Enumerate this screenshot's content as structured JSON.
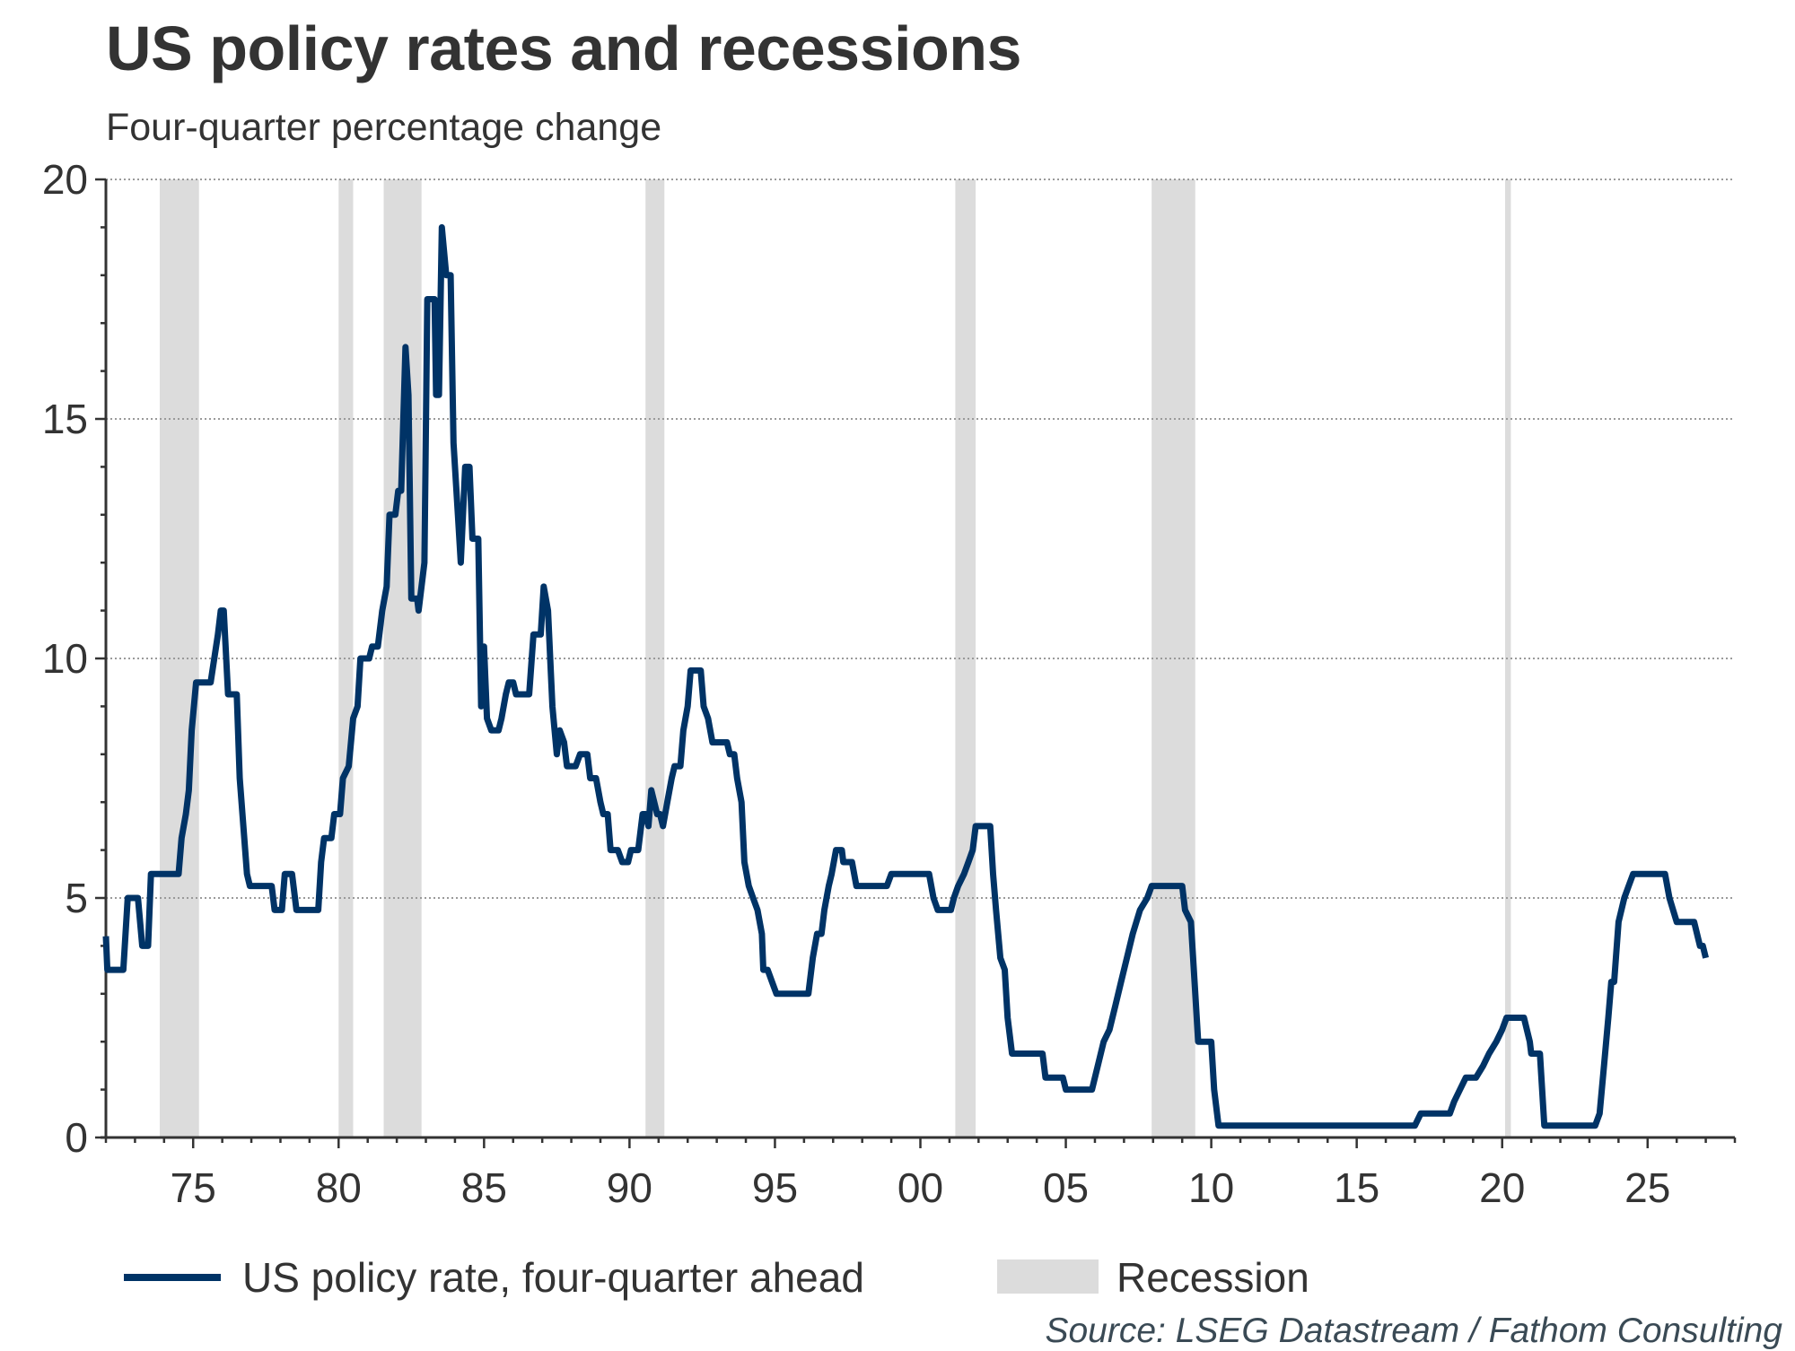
{
  "chart_data": {
    "type": "line",
    "title": "US policy rates and recessions",
    "subtitle": "Four-quarter percentage change",
    "xlabel": "",
    "ylabel": "",
    "xlim": [
      1972,
      2028
    ],
    "ylim": [
      0,
      20
    ],
    "x_ticks": [
      {
        "value": 1975,
        "label": "75"
      },
      {
        "value": 1980,
        "label": "80"
      },
      {
        "value": 1985,
        "label": "85"
      },
      {
        "value": 1990,
        "label": "90"
      },
      {
        "value": 1995,
        "label": "95"
      },
      {
        "value": 2000,
        "label": "00"
      },
      {
        "value": 2005,
        "label": "05"
      },
      {
        "value": 2010,
        "label": "10"
      },
      {
        "value": 2015,
        "label": "15"
      },
      {
        "value": 2020,
        "label": "20"
      },
      {
        "value": 2025,
        "label": "25"
      }
    ],
    "y_ticks": [
      {
        "value": 0,
        "label": "0"
      },
      {
        "value": 5,
        "label": "5"
      },
      {
        "value": 10,
        "label": "10"
      },
      {
        "value": 15,
        "label": "15"
      },
      {
        "value": 20,
        "label": "20"
      }
    ],
    "grid": "horizontal dotted",
    "legend_position": "bottom",
    "series": [
      {
        "name": "US policy rate, four-quarter ahead",
        "color": "#003366",
        "points": [
          [
            1972.0,
            4.2
          ],
          [
            1972.05,
            3.5
          ],
          [
            1972.6,
            3.5
          ],
          [
            1972.75,
            5.0
          ],
          [
            1973.1,
            5.0
          ],
          [
            1973.25,
            4.0
          ],
          [
            1973.45,
            4.0
          ],
          [
            1973.55,
            5.5
          ],
          [
            1974.5,
            5.5
          ],
          [
            1974.6,
            6.25
          ],
          [
            1974.75,
            6.75
          ],
          [
            1974.85,
            7.25
          ],
          [
            1974.95,
            8.5
          ],
          [
            1975.1,
            9.5
          ],
          [
            1975.6,
            9.5
          ],
          [
            1975.85,
            10.5
          ],
          [
            1975.95,
            11.0
          ],
          [
            1976.05,
            11.0
          ],
          [
            1976.2,
            9.25
          ],
          [
            1976.5,
            9.25
          ],
          [
            1976.6,
            7.5
          ],
          [
            1976.85,
            5.5
          ],
          [
            1976.95,
            5.25
          ],
          [
            1977.7,
            5.25
          ],
          [
            1977.8,
            4.75
          ],
          [
            1978.05,
            4.75
          ],
          [
            1978.15,
            5.5
          ],
          [
            1978.4,
            5.5
          ],
          [
            1978.55,
            4.75
          ],
          [
            1979.3,
            4.75
          ],
          [
            1979.4,
            5.75
          ],
          [
            1979.5,
            6.25
          ],
          [
            1979.75,
            6.25
          ],
          [
            1979.85,
            6.75
          ],
          [
            1980.05,
            6.75
          ],
          [
            1980.15,
            7.5
          ],
          [
            1980.35,
            7.75
          ],
          [
            1980.5,
            8.75
          ],
          [
            1980.65,
            9.0
          ],
          [
            1980.75,
            10.0
          ],
          [
            1981.05,
            10.0
          ],
          [
            1981.15,
            10.25
          ],
          [
            1981.35,
            10.25
          ],
          [
            1981.5,
            11.0
          ],
          [
            1981.65,
            11.5
          ],
          [
            1981.75,
            13.0
          ],
          [
            1981.95,
            13.0
          ],
          [
            1982.05,
            13.5
          ],
          [
            1982.15,
            13.5
          ],
          [
            1982.3,
            16.5
          ],
          [
            1982.4,
            15.5
          ],
          [
            1982.5,
            11.25
          ],
          [
            1982.7,
            11.25
          ],
          [
            1982.75,
            11.0
          ],
          [
            1982.95,
            12.0
          ],
          [
            1983.05,
            17.5
          ],
          [
            1983.3,
            17.5
          ],
          [
            1983.35,
            15.5
          ],
          [
            1983.45,
            15.5
          ],
          [
            1983.55,
            19.0
          ],
          [
            1983.7,
            18.0
          ],
          [
            1983.85,
            18.0
          ],
          [
            1983.95,
            14.5
          ],
          [
            1984.1,
            13.0
          ],
          [
            1984.2,
            12.0
          ],
          [
            1984.35,
            14.0
          ],
          [
            1984.5,
            14.0
          ],
          [
            1984.6,
            12.5
          ],
          [
            1984.8,
            12.5
          ],
          [
            1984.9,
            9.0
          ],
          [
            1985.0,
            10.25
          ],
          [
            1985.1,
            8.75
          ],
          [
            1985.25,
            8.5
          ],
          [
            1985.5,
            8.5
          ],
          [
            1985.6,
            8.75
          ],
          [
            1985.75,
            9.25
          ],
          [
            1985.85,
            9.5
          ],
          [
            1986.0,
            9.5
          ],
          [
            1986.1,
            9.25
          ],
          [
            1986.55,
            9.25
          ],
          [
            1986.7,
            10.5
          ],
          [
            1986.95,
            10.5
          ],
          [
            1987.05,
            11.5
          ],
          [
            1987.2,
            11.0
          ],
          [
            1987.35,
            9.0
          ],
          [
            1987.5,
            8.0
          ],
          [
            1987.6,
            8.5
          ],
          [
            1987.75,
            8.25
          ],
          [
            1987.85,
            7.75
          ],
          [
            1988.15,
            7.75
          ],
          [
            1988.3,
            8.0
          ],
          [
            1988.55,
            8.0
          ],
          [
            1988.65,
            7.5
          ],
          [
            1988.85,
            7.5
          ],
          [
            1989.0,
            7.0
          ],
          [
            1989.1,
            6.75
          ],
          [
            1989.25,
            6.75
          ],
          [
            1989.35,
            6.0
          ],
          [
            1989.6,
            6.0
          ],
          [
            1989.75,
            5.75
          ],
          [
            1989.95,
            5.75
          ],
          [
            1990.05,
            6.0
          ],
          [
            1990.3,
            6.0
          ],
          [
            1990.45,
            6.75
          ],
          [
            1990.55,
            6.75
          ],
          [
            1990.65,
            6.5
          ],
          [
            1990.75,
            7.25
          ],
          [
            1990.95,
            6.75
          ],
          [
            1991.05,
            6.75
          ],
          [
            1991.15,
            6.5
          ],
          [
            1991.3,
            7.0
          ],
          [
            1991.45,
            7.5
          ],
          [
            1991.55,
            7.75
          ],
          [
            1991.75,
            7.75
          ],
          [
            1991.85,
            8.5
          ],
          [
            1992.0,
            9.0
          ],
          [
            1992.1,
            9.75
          ],
          [
            1992.3,
            9.75
          ],
          [
            1992.45,
            9.75
          ],
          [
            1992.55,
            9.0
          ],
          [
            1992.7,
            8.75
          ],
          [
            1992.85,
            8.25
          ],
          [
            1993.35,
            8.25
          ],
          [
            1993.45,
            8.0
          ],
          [
            1993.6,
            8.0
          ],
          [
            1993.7,
            7.5
          ],
          [
            1993.85,
            7.0
          ],
          [
            1993.95,
            5.75
          ],
          [
            1994.1,
            5.25
          ],
          [
            1994.25,
            5.0
          ],
          [
            1994.4,
            4.75
          ],
          [
            1994.55,
            4.25
          ],
          [
            1994.6,
            3.5
          ],
          [
            1994.75,
            3.5
          ],
          [
            1994.9,
            3.25
          ],
          [
            1995.05,
            3.0
          ],
          [
            1995.15,
            3.0
          ],
          [
            1996.15,
            3.0
          ],
          [
            1996.3,
            3.75
          ],
          [
            1996.45,
            4.25
          ],
          [
            1996.6,
            4.25
          ],
          [
            1996.7,
            4.75
          ],
          [
            1996.85,
            5.25
          ],
          [
            1996.95,
            5.5
          ],
          [
            1997.1,
            6.0
          ],
          [
            1997.3,
            6.0
          ],
          [
            1997.35,
            5.75
          ],
          [
            1997.65,
            5.75
          ],
          [
            1997.8,
            5.25
          ],
          [
            1998.85,
            5.25
          ],
          [
            1999.0,
            5.5
          ],
          [
            2000.3,
            5.5
          ],
          [
            2000.45,
            5.0
          ],
          [
            2000.6,
            4.75
          ],
          [
            2001.05,
            4.75
          ],
          [
            2001.15,
            5.0
          ],
          [
            2001.3,
            5.25
          ],
          [
            2001.5,
            5.5
          ],
          [
            2001.65,
            5.75
          ],
          [
            2001.8,
            6.0
          ],
          [
            2001.9,
            6.5
          ],
          [
            2002.4,
            6.5
          ],
          [
            2002.5,
            5.5
          ],
          [
            2002.6,
            4.75
          ],
          [
            2002.75,
            3.75
          ],
          [
            2002.9,
            3.5
          ],
          [
            2003.0,
            2.5
          ],
          [
            2003.15,
            1.75
          ],
          [
            2004.2,
            1.75
          ],
          [
            2004.3,
            1.25
          ],
          [
            2004.9,
            1.25
          ],
          [
            2005.0,
            1.0
          ],
          [
            2005.9,
            1.0
          ],
          [
            2006.1,
            1.5
          ],
          [
            2006.3,
            2.0
          ],
          [
            2006.5,
            2.25
          ],
          [
            2006.7,
            2.75
          ],
          [
            2006.9,
            3.25
          ],
          [
            2007.1,
            3.75
          ],
          [
            2007.3,
            4.25
          ],
          [
            2007.55,
            4.75
          ],
          [
            2007.8,
            5.0
          ],
          [
            2007.95,
            5.25
          ],
          [
            2009.0,
            5.25
          ],
          [
            2009.1,
            4.75
          ],
          [
            2009.3,
            4.5
          ],
          [
            2009.45,
            3.0
          ],
          [
            2009.55,
            2.0
          ],
          [
            2010.0,
            2.0
          ],
          [
            2010.1,
            1.0
          ],
          [
            2010.25,
            0.25
          ],
          [
            2017.0,
            0.25
          ],
          [
            2017.2,
            0.5
          ],
          [
            2018.2,
            0.5
          ],
          [
            2018.35,
            0.75
          ],
          [
            2018.55,
            1.0
          ],
          [
            2018.75,
            1.25
          ],
          [
            2019.1,
            1.25
          ],
          [
            2019.35,
            1.5
          ],
          [
            2019.55,
            1.75
          ],
          [
            2019.8,
            2.0
          ],
          [
            2020.0,
            2.25
          ],
          [
            2020.15,
            2.5
          ],
          [
            2020.75,
            2.5
          ],
          [
            2020.95,
            2.0
          ],
          [
            2021.0,
            1.75
          ],
          [
            2021.3,
            1.75
          ],
          [
            2021.45,
            0.25
          ],
          [
            2023.2,
            0.25
          ],
          [
            2023.35,
            0.5
          ],
          [
            2023.5,
            1.5
          ],
          [
            2023.65,
            2.5
          ],
          [
            2023.75,
            3.25
          ],
          [
            2023.85,
            3.25
          ],
          [
            2024.0,
            4.5
          ],
          [
            2024.2,
            5.0
          ],
          [
            2024.35,
            5.25
          ],
          [
            2024.5,
            5.5
          ],
          [
            2025.6,
            5.5
          ],
          [
            2025.75,
            5.0
          ],
          [
            2026.0,
            4.5
          ],
          [
            2026.6,
            4.5
          ],
          [
            2026.8,
            4.0
          ],
          [
            2026.9,
            4.0
          ],
          [
            2027.0,
            3.75
          ]
        ]
      }
    ],
    "recessions": [
      {
        "start": 1973.85,
        "end": 1975.2
      },
      {
        "start": 1980.0,
        "end": 1980.5
      },
      {
        "start": 1981.55,
        "end": 1982.85
      },
      {
        "start": 1990.55,
        "end": 1991.2
      },
      {
        "start": 2001.2,
        "end": 2001.9
      },
      {
        "start": 2007.95,
        "end": 2009.45
      },
      {
        "start": 2020.1,
        "end": 2020.3
      }
    ],
    "legend": [
      {
        "label": "US policy rate, four-quarter ahead",
        "type": "line",
        "color": "#003366"
      },
      {
        "label": "Recession",
        "type": "area",
        "color": "#dcdcdc"
      }
    ],
    "source": "Source: LSEG Datastream / Fathom Consulting"
  }
}
